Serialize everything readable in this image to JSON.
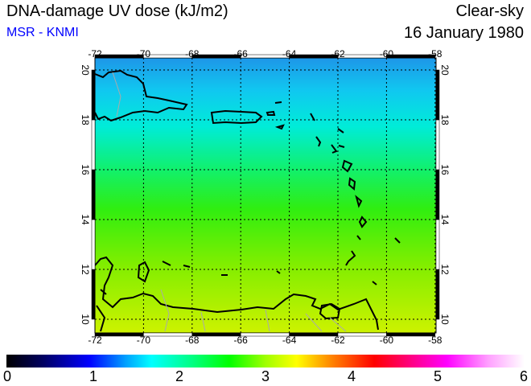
{
  "header": {
    "title": "DNA-damage UV dose (kJ/m2)",
    "credit": "MSR - KNMI",
    "sky": "Clear-sky",
    "date": "16 January 1980"
  },
  "map": {
    "lon_ticks": [
      "-72",
      "-70",
      "-68",
      "-66",
      "-64",
      "-62",
      "-60",
      "-58"
    ],
    "lat_ticks": [
      "20",
      "18",
      "16",
      "14",
      "12",
      "10"
    ],
    "lon_range": [
      -72,
      -58
    ],
    "lat_range": [
      9.5,
      20.5
    ]
  },
  "colorbar": {
    "labels": [
      "0",
      "1",
      "2",
      "3",
      "4",
      "5",
      "6"
    ],
    "range": [
      0,
      6
    ]
  }
}
